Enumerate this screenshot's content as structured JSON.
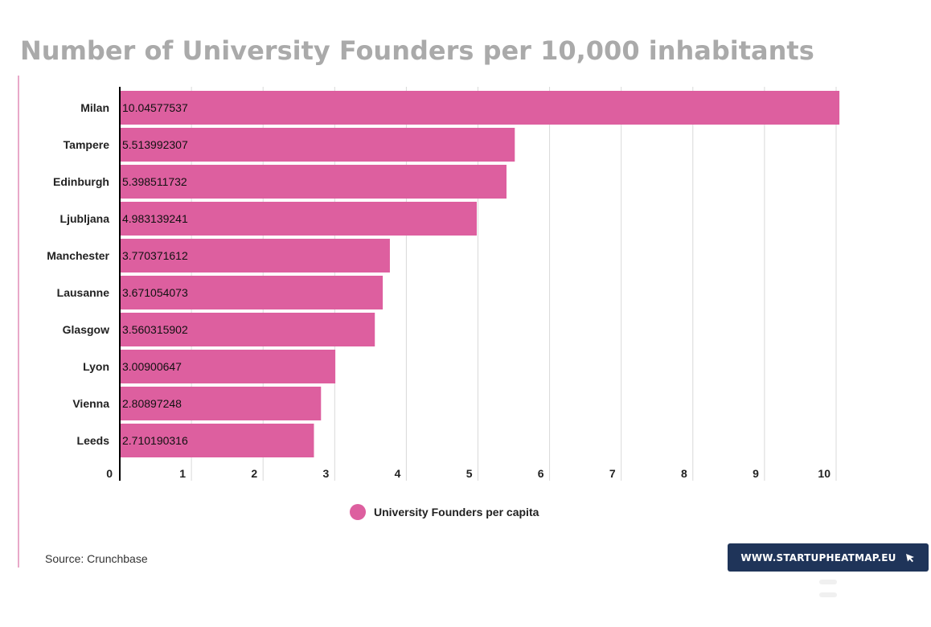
{
  "title": "Number of University Founders per 10,000 inhabitants",
  "source": "Source: Crunchbase",
  "brand": {
    "label": "WWW.STARTUPHEATMAP.EU",
    "icon": "cursor-arrow-icon",
    "background": "#1f3459"
  },
  "colors": {
    "bar": "#dd5f9f",
    "grid": "#d9d9d9",
    "axis": "#000000",
    "accent": "#e8a9c9"
  },
  "chart_data": {
    "type": "bar",
    "orientation": "horizontal",
    "title": "Number of University Founders per 10,000 inhabitants",
    "categories": [
      "Milan",
      "Tampere",
      "Edinburgh",
      "Ljubljana",
      "Manchester",
      "Lausanne",
      "Glasgow",
      "Lyon",
      "Vienna",
      "Leeds"
    ],
    "series": [
      {
        "name": "University Founders per capita",
        "values": [
          10.04577537,
          5.513992307,
          5.398511732,
          4.983139241,
          3.770371612,
          3.671054073,
          3.560315902,
          3.00900647,
          2.80897248,
          2.710190316
        ],
        "labels": [
          "10.04577537",
          "5.513992307",
          "5.398511732",
          "4.983139241",
          "3.770371612",
          "3.671054073",
          "3.560315902",
          "3.00900647",
          "2.80897248",
          "2.710190316"
        ]
      }
    ],
    "xlim": [
      0,
      10
    ],
    "xticks": [
      "0",
      "1",
      "2",
      "3",
      "4",
      "5",
      "6",
      "7",
      "8",
      "9",
      "10"
    ],
    "grid": true,
    "legend_position": "bottom"
  }
}
